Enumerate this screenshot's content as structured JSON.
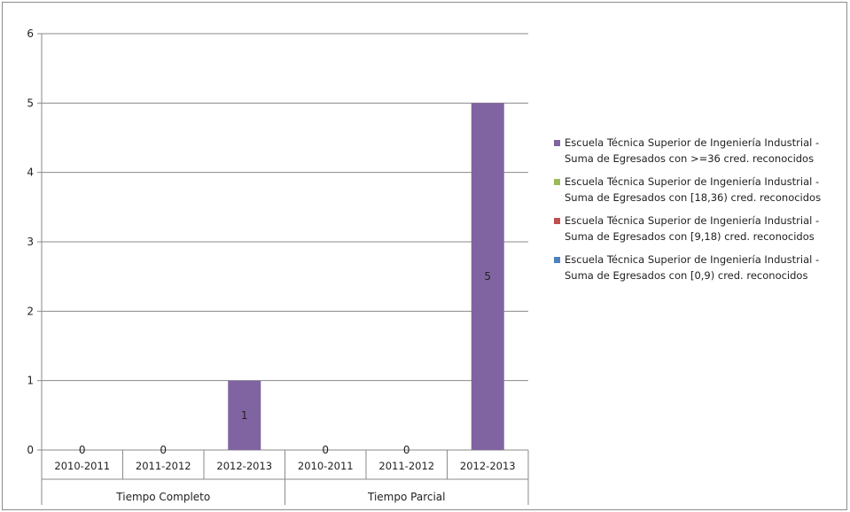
{
  "chart_data": {
    "type": "bar",
    "title": "",
    "xlabel": "",
    "ylabel": "",
    "ylim": [
      0,
      6
    ],
    "yticks": [
      "0",
      "1",
      "2",
      "3",
      "4",
      "5",
      "6"
    ],
    "grid": true,
    "legend_position": "right",
    "groups": [
      {
        "label": "Tiempo Completo",
        "categories": [
          "2010-2011",
          "2011-2012",
          "2012-2013"
        ]
      },
      {
        "label": "Tiempo Parcial",
        "categories": [
          "2010-2011",
          "2011-2012",
          "2012-2013"
        ]
      }
    ],
    "categories": [
      "2010-2011",
      "2011-2012",
      "2012-2013",
      "2010-2011",
      "2011-2012",
      "2012-2013"
    ],
    "series": [
      {
        "name": "Escuela Técnica Superior de Ingeniería Industrial - Suma de Egresados con [0,9) cred. reconocidos",
        "color": "#4f81bd",
        "values": [
          0,
          0,
          0,
          0,
          0,
          0
        ]
      },
      {
        "name": "Escuela Técnica Superior de Ingeniería Industrial - Suma de Egresados con [9,18) cred. reconocidos",
        "color": "#c0504d",
        "values": [
          0,
          0,
          0,
          0,
          0,
          0
        ]
      },
      {
        "name": "Escuela Técnica Superior de Ingeniería Industrial - Suma de Egresados con [18,36) cred. reconocidos",
        "color": "#9bbb59",
        "values": [
          0,
          0,
          0,
          0,
          0,
          0
        ]
      },
      {
        "name": "Escuela Técnica Superior de Ingeniería Industrial - Suma de Egresados con >=36 cred. reconocidos",
        "color": "#8064a2",
        "values": [
          0,
          0,
          1,
          0,
          0,
          5
        ]
      }
    ],
    "data_labels": [
      "0",
      "0",
      "1",
      "0",
      "0",
      "5"
    ],
    "legend_order": [
      3,
      2,
      1,
      0
    ]
  }
}
